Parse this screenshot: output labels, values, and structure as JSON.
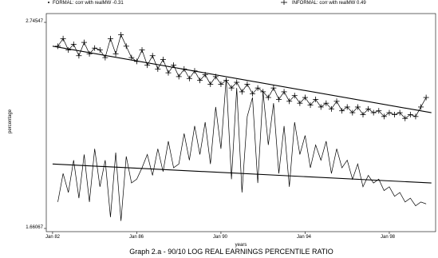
{
  "chart_data": {
    "type": "line",
    "title": "Graph 2.a - 90/10 LOG REAL EARNINGS PERCENTILE RATIO",
    "xlabel": "years",
    "ylabel": "percentage",
    "x_tick_labels": [
      "Jan 82",
      "Jan 86",
      "Jan 90",
      "Jan 94",
      "Jan 98"
    ],
    "x_tick_values": [
      1982,
      1986,
      1990,
      1994,
      1998
    ],
    "y_tick_labels": [
      "2.74547",
      "1.66067"
    ],
    "y_tick_values": [
      2.74547,
      1.66067
    ],
    "xlim": [
      1981.7,
      2000.2
    ],
    "ylim": [
      1.66067,
      2.74547
    ],
    "legend_position": "top",
    "legend": [
      {
        "label": "FORMAL: corr with realMW -0.31",
        "marker": "dot"
      },
      {
        "label": "INFORMAL: corr with realMW 0.49",
        "marker": "plus"
      }
    ],
    "series": [
      {
        "name": "FORMAL",
        "marker": "none",
        "x": [
          1982.25,
          1982.5,
          1982.75,
          1983.0,
          1983.25,
          1983.5,
          1983.75,
          1984.0,
          1984.25,
          1984.5,
          1984.75,
          1985.0,
          1985.25,
          1985.5,
          1985.75,
          1986.0,
          1986.25,
          1986.5,
          1986.75,
          1987.0,
          1987.25,
          1987.5,
          1987.75,
          1988.0,
          1988.25,
          1988.5,
          1988.75,
          1989.0,
          1989.25,
          1989.5,
          1989.75,
          1990.0,
          1990.25,
          1990.5,
          1990.75,
          1991.0,
          1991.25,
          1991.5,
          1991.75,
          1992.0,
          1992.25,
          1992.5,
          1992.75,
          1993.0,
          1993.25,
          1993.5,
          1993.75,
          1994.0,
          1994.25,
          1994.5,
          1994.75,
          1995.0,
          1995.25,
          1995.5,
          1995.75,
          1996.0,
          1996.25,
          1996.5,
          1996.75,
          1997.0,
          1997.25,
          1997.5,
          1997.75,
          1998.0,
          1998.25,
          1998.5,
          1998.75,
          1999.0,
          1999.25,
          1999.5,
          1999.75
        ],
        "values": [
          1.8,
          1.95,
          1.85,
          2.02,
          1.82,
          2.05,
          1.8,
          2.08,
          1.88,
          2.02,
          1.72,
          2.06,
          1.7,
          2.04,
          1.9,
          1.92,
          1.98,
          2.05,
          1.94,
          2.08,
          1.96,
          2.12,
          1.98,
          2.0,
          2.16,
          2.02,
          2.2,
          2.05,
          2.22,
          2.0,
          2.3,
          2.08,
          2.45,
          1.92,
          2.4,
          1.85,
          2.25,
          2.35,
          1.9,
          2.38,
          2.1,
          2.32,
          1.95,
          2.2,
          1.88,
          2.22,
          2.05,
          2.15,
          1.98,
          2.1,
          2.02,
          2.12,
          1.95,
          2.08,
          1.98,
          2.02,
          1.92,
          2.0,
          1.88,
          1.94,
          1.9,
          1.92,
          1.86,
          1.88,
          1.83,
          1.85,
          1.8,
          1.82,
          1.78,
          1.8,
          1.79
        ]
      },
      {
        "name": "INFORMAL",
        "marker": "plus",
        "x": [
          1982.25,
          1982.5,
          1982.75,
          1983.0,
          1983.25,
          1983.5,
          1983.75,
          1984.0,
          1984.25,
          1984.5,
          1984.75,
          1985.0,
          1985.25,
          1985.5,
          1985.75,
          1986.0,
          1986.25,
          1986.5,
          1986.75,
          1987.0,
          1987.25,
          1987.5,
          1987.75,
          1988.0,
          1988.25,
          1988.5,
          1988.75,
          1989.0,
          1989.25,
          1989.5,
          1989.75,
          1990.0,
          1990.25,
          1990.5,
          1990.75,
          1991.0,
          1991.25,
          1991.5,
          1991.75,
          1992.0,
          1992.25,
          1992.5,
          1992.75,
          1993.0,
          1993.25,
          1993.5,
          1993.75,
          1994.0,
          1994.25,
          1994.5,
          1994.75,
          1995.0,
          1995.25,
          1995.5,
          1995.75,
          1996.0,
          1996.25,
          1996.5,
          1996.75,
          1997.0,
          1997.25,
          1997.5,
          1997.75,
          1998.0,
          1998.25,
          1998.5,
          1998.75,
          1999.0,
          1999.25,
          1999.5,
          1999.75
        ],
        "values": [
          2.62,
          2.66,
          2.6,
          2.63,
          2.57,
          2.64,
          2.58,
          2.61,
          2.6,
          2.56,
          2.66,
          2.58,
          2.68,
          2.62,
          2.56,
          2.54,
          2.6,
          2.52,
          2.57,
          2.5,
          2.55,
          2.48,
          2.52,
          2.46,
          2.5,
          2.45,
          2.49,
          2.44,
          2.47,
          2.42,
          2.46,
          2.42,
          2.44,
          2.4,
          2.43,
          2.38,
          2.42,
          2.37,
          2.4,
          2.38,
          2.35,
          2.4,
          2.34,
          2.38,
          2.33,
          2.36,
          2.32,
          2.35,
          2.31,
          2.34,
          2.3,
          2.32,
          2.29,
          2.33,
          2.28,
          2.3,
          2.27,
          2.3,
          2.26,
          2.29,
          2.27,
          2.28,
          2.25,
          2.27,
          2.26,
          2.27,
          2.24,
          2.26,
          2.25,
          2.3,
          2.35
        ]
      }
    ],
    "trend_lines": [
      {
        "name": "INFORMAL trend",
        "x": [
          1982.0,
          2000.0
        ],
        "values": [
          2.62,
          2.27
        ]
      },
      {
        "name": "FORMAL trend",
        "x": [
          1982.0,
          2000.0
        ],
        "values": [
          2.0,
          1.9
        ]
      }
    ]
  }
}
